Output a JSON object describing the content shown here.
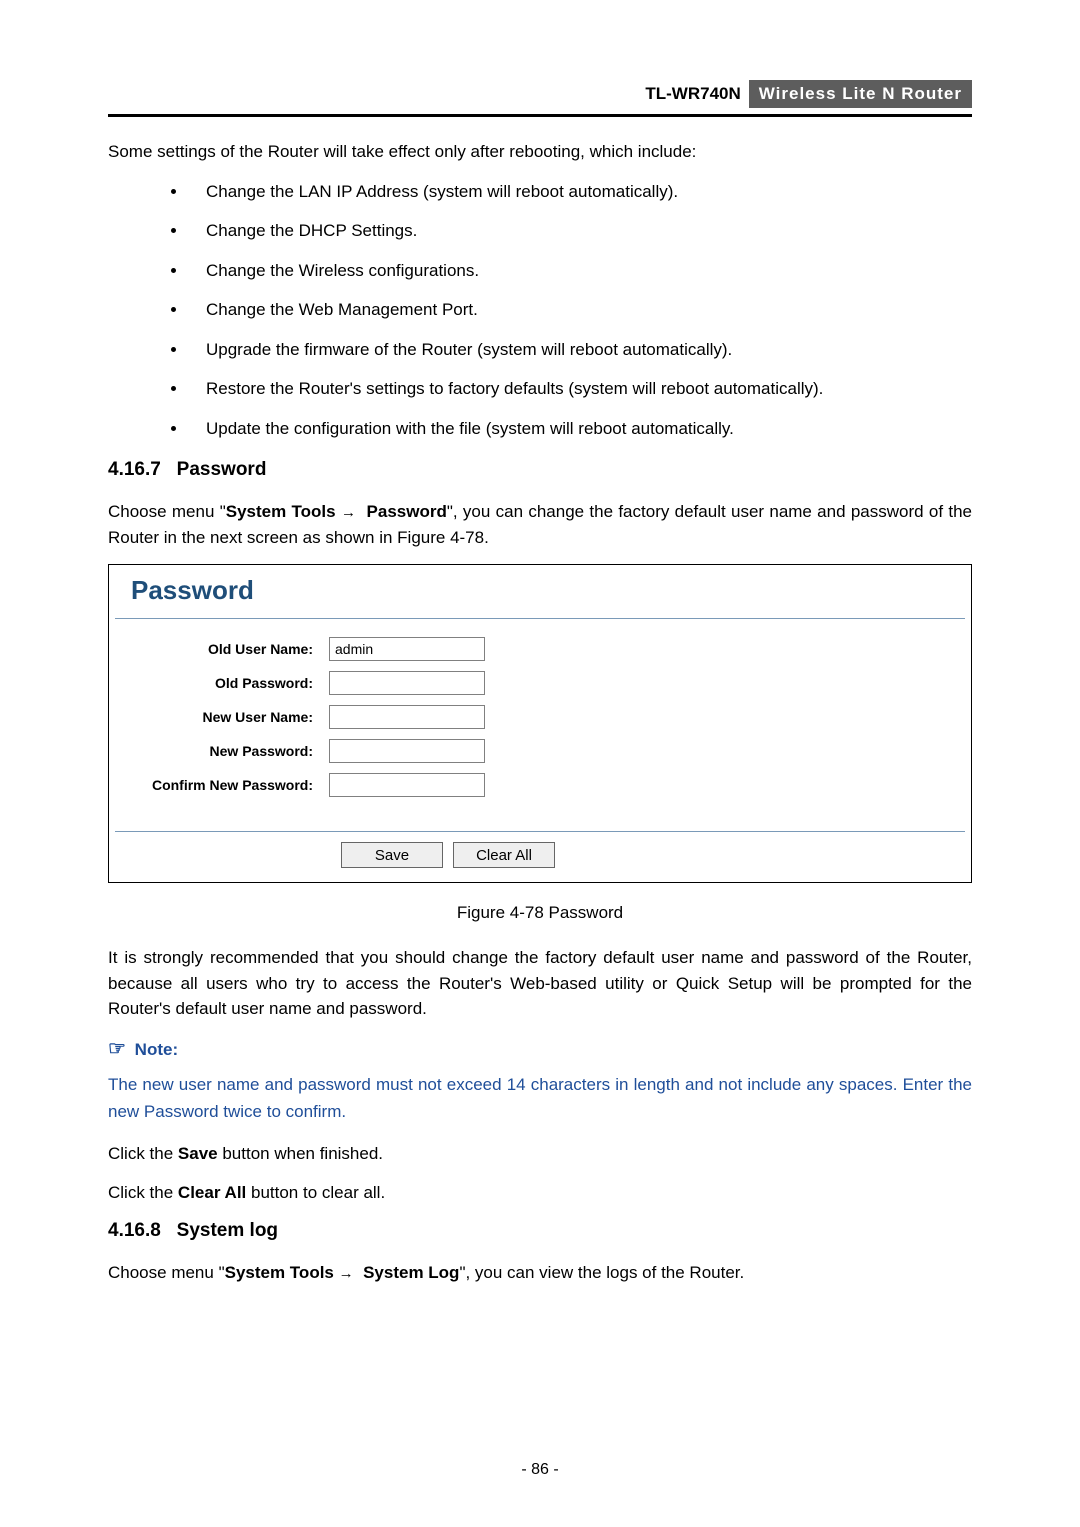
{
  "header": {
    "model": "TL-WR740N",
    "productTitle": "Wireless  Lite  N   Router"
  },
  "intro": "Some settings of the Router will take effect only after rebooting, which include:",
  "bullets": [
    "Change the LAN IP Address (system will reboot automatically).",
    "Change the DHCP Settings.",
    "Change the Wireless configurations.",
    "Change the Web Management Port.",
    "Upgrade the firmware of the Router (system will reboot automatically).",
    "Restore the Router's settings to factory defaults (system will reboot automatically).",
    "Update the configuration with the file (system will reboot automatically."
  ],
  "sectionPassword": {
    "number": "4.16.7",
    "title": "Password",
    "paraPrefix": "Choose menu \"",
    "menuPath1": "System Tools",
    "menuPath2": "Password",
    "paraSuffix": "\", you can change the factory default user name and password of the Router in the next screen as shown in Figure 4-78."
  },
  "figure": {
    "title": "Password",
    "labels": {
      "oldUser": "Old User Name:",
      "oldPass": "Old Password:",
      "newUser": "New User Name:",
      "newPass": "New Password:",
      "confirm": "Confirm New Password:"
    },
    "values": {
      "oldUser": "admin",
      "oldPass": "",
      "newUser": "",
      "newPass": "",
      "confirm": ""
    },
    "buttons": {
      "save": "Save",
      "clear": "Clear All"
    },
    "caption": "Figure 4-78    Password"
  },
  "paraAfterFigure": "It is strongly recommended that you should change the factory default user name and password of the Router, because all users who try to access the Router's Web-based utility or Quick Setup will be prompted for the Router's default user name and password.",
  "note": {
    "label": "Note:",
    "text": "The new user name and password must not exceed 14 characters in length and not include any spaces. Enter the new Password twice to confirm."
  },
  "clickSave": {
    "prefix": "Click the ",
    "bold": "Save",
    "suffix": " button when finished."
  },
  "clickClear": {
    "prefix": "Click the ",
    "bold": "Clear All",
    "suffix": " button to clear all."
  },
  "sectionSyslog": {
    "number": "4.16.8",
    "title": "System log",
    "paraPrefix": "Choose menu \"",
    "menuPath1": "System Tools",
    "menuPath2": "System Log",
    "paraSuffix": "\", you can view the logs of the Router."
  },
  "pageNumber": "- 86 -"
}
